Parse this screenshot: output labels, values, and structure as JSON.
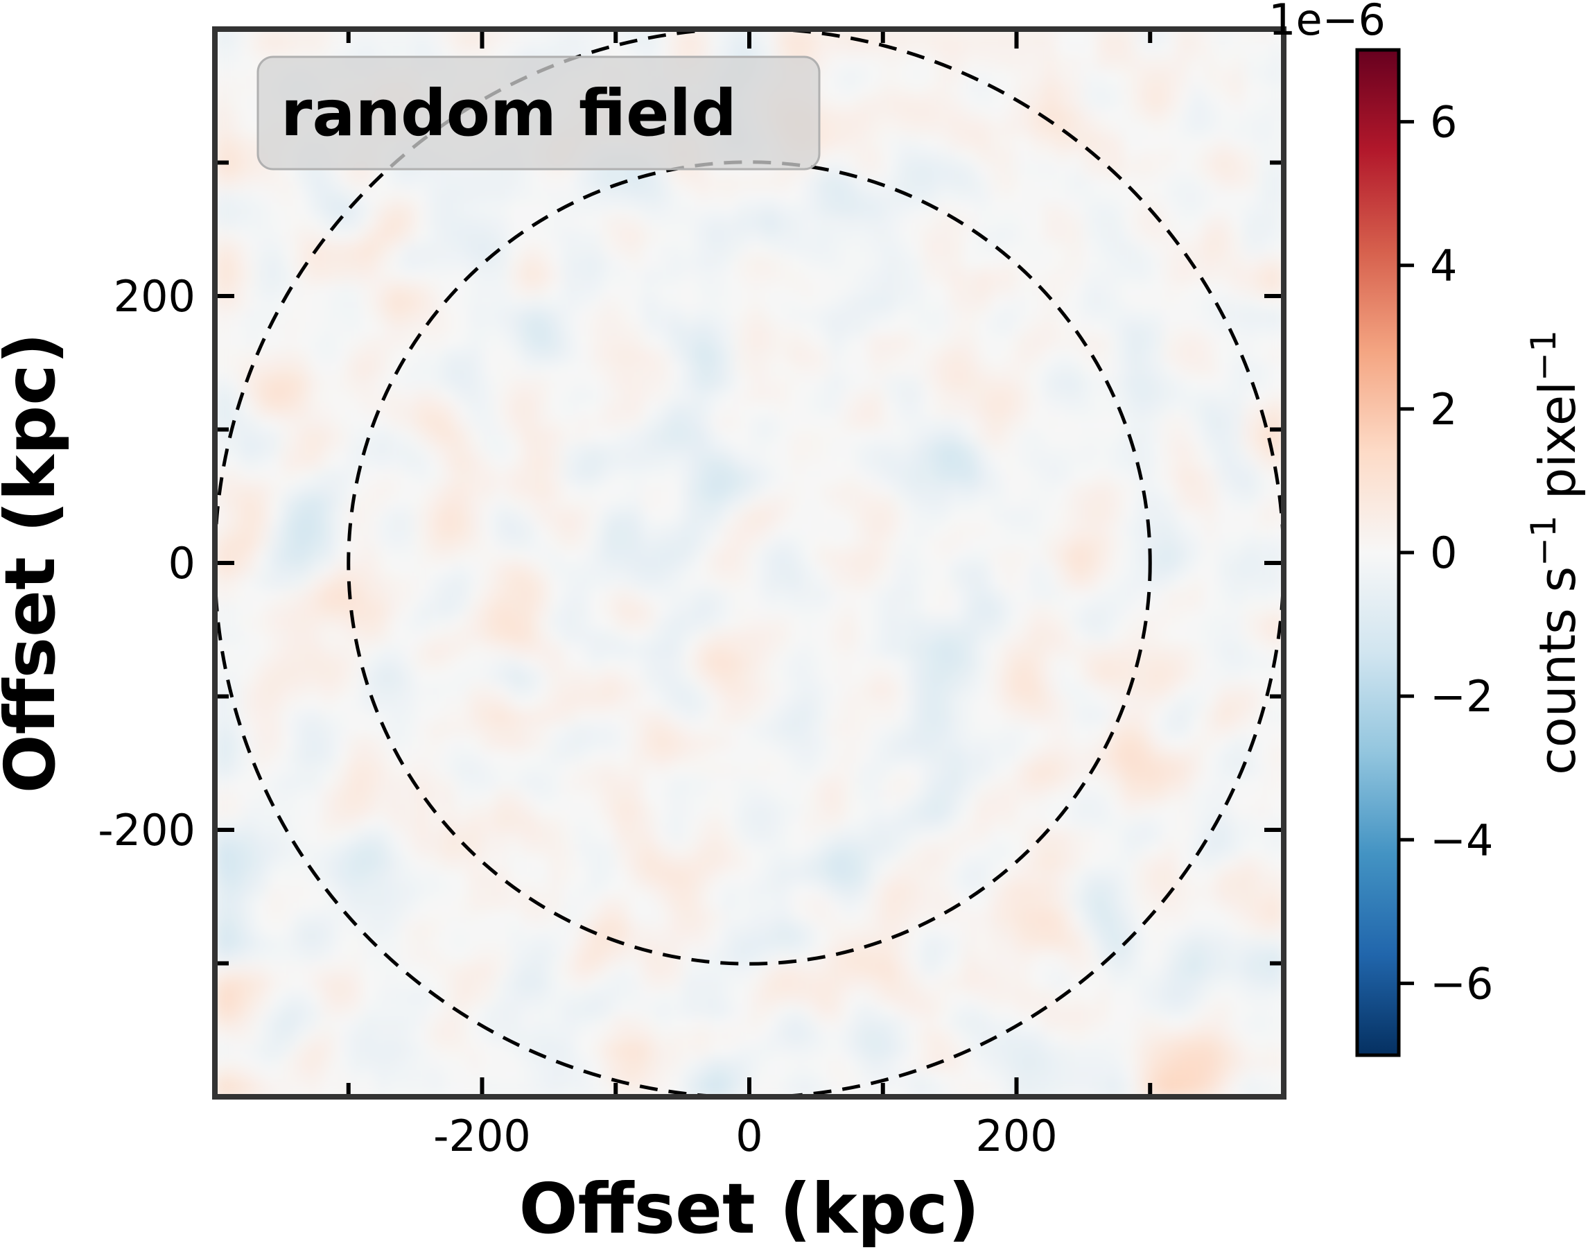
{
  "chart_data": {
    "type": "heatmap",
    "title": "",
    "annotation": "random field",
    "xlabel": "Offset (kpc)",
    "ylabel": "Offset (kpc)",
    "xlim": [
      -400,
      400
    ],
    "ylim": [
      -400,
      400
    ],
    "x_ticks": [
      -200,
      0,
      200
    ],
    "x_tick_labels": [
      "-200",
      "0",
      "200"
    ],
    "y_ticks": [
      200,
      0,
      -200
    ],
    "y_tick_labels": [
      "200",
      "0",
      "-200"
    ],
    "minor_tick_step": 100,
    "circles": [
      {
        "radius_kpc": 300,
        "style": "dashed"
      },
      {
        "radius_kpc": 400,
        "style": "dashed"
      }
    ],
    "colorbar": {
      "label_main": "counts s",
      "label_exp1": "−1",
      "label_mid": " pixel",
      "label_exp2": "−1",
      "multiplier": "1e−6",
      "vmin": -7,
      "vmax": 7,
      "ticks": [
        6,
        4,
        2,
        0,
        -2,
        -4,
        -6
      ],
      "tick_labels": [
        "6",
        "4",
        "2",
        "0",
        "−2",
        "−4",
        "−6"
      ],
      "colormap": "RdBu_r"
    },
    "field_amplitude_range": [
      -1.5,
      1.5
    ]
  },
  "colors": {
    "frame": "#333333",
    "circle": "#000000",
    "label_box_fill": "#d3d3d3",
    "cmap_stops": [
      "#053061",
      "#2166ac",
      "#4393c3",
      "#92c5de",
      "#d1e5f0",
      "#f7f7f7",
      "#fddbc7",
      "#f4a582",
      "#d6604d",
      "#b2182b",
      "#67001f"
    ]
  }
}
